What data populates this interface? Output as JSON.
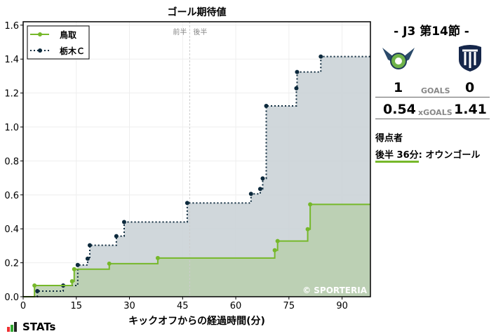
{
  "chart_data": {
    "type": "line",
    "step": true,
    "title": "ゴール期待値",
    "xlabel": "キックオフからの経過時間(分)",
    "ylabel": "",
    "xlim": [
      0,
      98
    ],
    "ylim": [
      0,
      1.62
    ],
    "xticks": [
      0,
      15,
      30,
      45,
      60,
      75,
      90
    ],
    "yticks": [
      0.0,
      0.2,
      0.4,
      0.6,
      0.8,
      1.0,
      1.2,
      1.4,
      1.6
    ],
    "grid": true,
    "legend": "top-left",
    "halftime": {
      "x": 47,
      "labels": [
        "前半",
        "後半"
      ]
    },
    "watermark": "© SPORTERIA",
    "series": [
      {
        "name": "鳥取",
        "color": "#76b82a",
        "fill": "#b9cfad",
        "style": "solid",
        "x": [
          3.2,
          13.8,
          14.4,
          24.3,
          38,
          71,
          71.8,
          80.3,
          81,
          98
        ],
        "y": [
          0.066,
          0.091,
          0.162,
          0.195,
          0.228,
          0.274,
          0.328,
          0.398,
          0.544,
          0.544
        ]
      },
      {
        "name": "栃木Ｃ",
        "color": "#0d2a3d",
        "fill": "#c8d0d5",
        "style": "dotted",
        "x": [
          4,
          11.3,
          15.4,
          18.2,
          18.8,
          26.3,
          28.5,
          46.3,
          64.3,
          66.9,
          67.6,
          68.6,
          77.1,
          77.3,
          84,
          98
        ],
        "y": [
          0.033,
          0.066,
          0.187,
          0.224,
          0.303,
          0.357,
          0.44,
          0.552,
          0.606,
          0.635,
          0.697,
          1.124,
          1.228,
          1.324,
          1.415,
          1.415
        ]
      }
    ]
  },
  "match": {
    "round": "-  J3 第14節  -",
    "home_goals": "1",
    "away_goals": "0",
    "goals_label": "GOALS",
    "home_xg": "0.54",
    "away_xg": "1.41",
    "xg_label": "xGOALS",
    "scorers_title": "得点者",
    "scorer_time": "後半 36分",
    "scorer_name": ": オウンゴール",
    "home_color": "#76b82a",
    "away_color": "#0d2a3d"
  },
  "brand": "STATs"
}
